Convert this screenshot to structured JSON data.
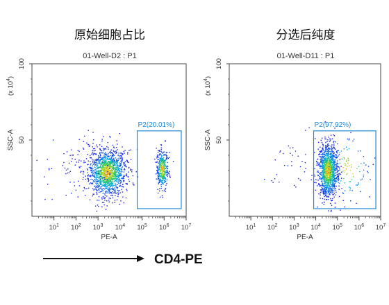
{
  "chart_data": [
    {
      "type": "scatter",
      "title": "原始细胞占比",
      "subtitle": "01-Well-D2 : P1",
      "xlabel": "PE-A",
      "ylabel": "SSC-A",
      "yexponent_label": "(x 10",
      "yexponent_sup": "4",
      "yexponent_close": ")",
      "xscale": "log",
      "xlim": [
        1,
        10000000
      ],
      "ylim": [
        0,
        100
      ],
      "xticks": [
        {
          "base": "10",
          "exp": "1"
        },
        {
          "base": "10",
          "exp": "2"
        },
        {
          "base": "10",
          "exp": "3"
        },
        {
          "base": "10",
          "exp": "4"
        },
        {
          "base": "10",
          "exp": "5"
        },
        {
          "base": "10",
          "exp": "6"
        },
        {
          "base": "10",
          "exp": "7"
        }
      ],
      "yticks": [
        "50",
        "100"
      ],
      "gate": {
        "name": "P2",
        "label": "P2(20.01%)",
        "percent": 20.01,
        "x_range": [
          60000,
          6000000
        ],
        "y_range": [
          5,
          56
        ]
      },
      "populations": [
        {
          "log_x_center": 3.4,
          "log_x_sd": 0.42,
          "y_center": 29,
          "y_sd": 7.5,
          "count": 1300
        },
        {
          "log_x_center": 5.9,
          "log_x_sd": 0.13,
          "y_center": 31,
          "y_sd": 6.5,
          "count": 380
        },
        {
          "log_x_center": 2.5,
          "log_x_sd": 0.9,
          "y_center": 32,
          "y_sd": 12,
          "count": 140
        }
      ]
    },
    {
      "type": "scatter",
      "title": "分选后纯度",
      "subtitle": "01-Well-D11 : P1",
      "xlabel": "PE-A",
      "ylabel": "SSC-A",
      "yexponent_label": "(x 10",
      "yexponent_sup": "4",
      "yexponent_close": ")",
      "xscale": "log",
      "xlim": [
        1,
        10000000
      ],
      "ylim": [
        0,
        100
      ],
      "xticks": [
        {
          "base": "10",
          "exp": "1"
        },
        {
          "base": "10",
          "exp": "2"
        },
        {
          "base": "10",
          "exp": "3"
        },
        {
          "base": "10",
          "exp": "4"
        },
        {
          "base": "10",
          "exp": "5"
        },
        {
          "base": "10",
          "exp": "6"
        },
        {
          "base": "10",
          "exp": "7"
        }
      ],
      "yticks": [
        "50",
        "100"
      ],
      "gate": {
        "name": "P2",
        "label": "P2(97.92%)",
        "percent": 97.92,
        "x_range": [
          8000,
          6000000
        ],
        "y_range": [
          5,
          56
        ]
      },
      "populations": [
        {
          "log_x_center": 4.55,
          "log_x_sd": 0.22,
          "y_center": 30,
          "y_sd": 8.5,
          "count": 1200
        },
        {
          "log_x_center": 5.5,
          "log_x_sd": 0.5,
          "y_center": 32,
          "y_sd": 10,
          "count": 110
        },
        {
          "log_x_center": 3.0,
          "log_x_sd": 0.6,
          "y_center": 33,
          "y_sd": 10,
          "count": 40
        }
      ]
    }
  ],
  "footer": {
    "label": "CD4-PE"
  }
}
